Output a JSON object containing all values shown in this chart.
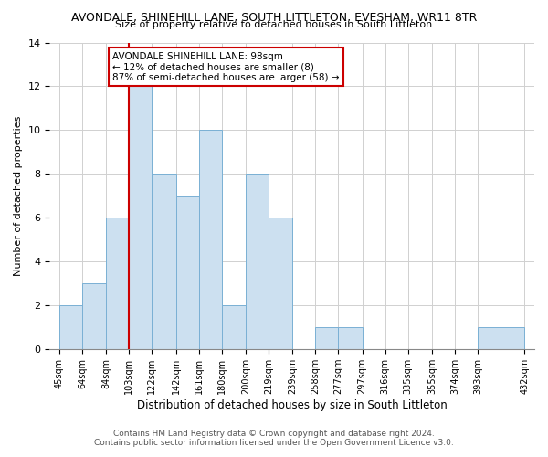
{
  "title": "AVONDALE, SHINEHILL LANE, SOUTH LITTLETON, EVESHAM, WR11 8TR",
  "subtitle": "Size of property relative to detached houses in South Littleton",
  "xlabel": "Distribution of detached houses by size in South Littleton",
  "ylabel": "Number of detached properties",
  "bin_edges": [
    45,
    64,
    84,
    103,
    122,
    142,
    161,
    180,
    200,
    219,
    239,
    258,
    277,
    297,
    316,
    335,
    355,
    374,
    393,
    432
  ],
  "bin_labels": [
    "45sqm",
    "64sqm",
    "84sqm",
    "103sqm",
    "122sqm",
    "142sqm",
    "161sqm",
    "180sqm",
    "200sqm",
    "219sqm",
    "239sqm",
    "258sqm",
    "277sqm",
    "297sqm",
    "316sqm",
    "335sqm",
    "355sqm",
    "374sqm",
    "393sqm",
    "432sqm"
  ],
  "counts": [
    2,
    3,
    6,
    12,
    8,
    7,
    10,
    2,
    8,
    6,
    0,
    1,
    1,
    0,
    0,
    0,
    0,
    0,
    1
  ],
  "bar_color": "#cce0f0",
  "bar_edge_color": "#7ab0d4",
  "reference_line_x": 103,
  "reference_line_color": "#cc0000",
  "ylim": [
    0,
    14
  ],
  "yticks": [
    0,
    2,
    4,
    6,
    8,
    10,
    12,
    14
  ],
  "annotation_line1": "AVONDALE SHINEHILL LANE: 98sqm",
  "annotation_line2": "← 12% of detached houses are smaller (8)",
  "annotation_line3": "87% of semi-detached houses are larger (58) →",
  "annotation_box_color": "#ffffff",
  "annotation_box_edge": "#cc0000",
  "footer_line1": "Contains HM Land Registry data © Crown copyright and database right 2024.",
  "footer_line2": "Contains public sector information licensed under the Open Government Licence v3.0.",
  "bg_color": "#ffffff"
}
